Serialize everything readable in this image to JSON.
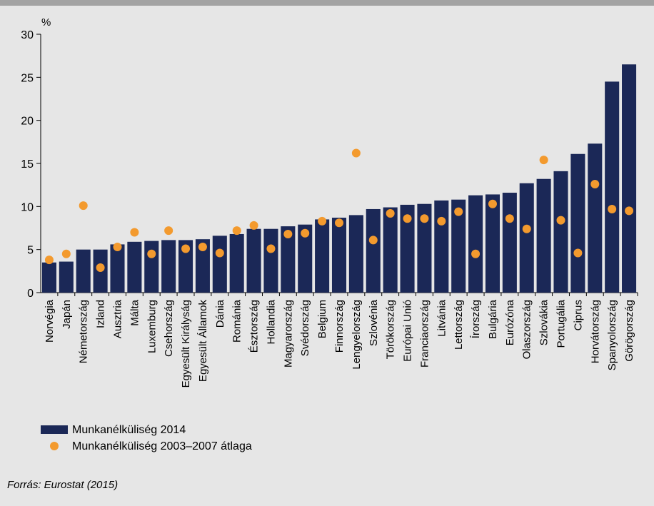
{
  "chart_data": {
    "type": "bar",
    "y_label": "%",
    "categories": [
      "Norvégia",
      "Japán",
      "Németország",
      "Izland",
      "Ausztria",
      "Málta",
      "Luxemburg",
      "Csehország",
      "Egyesült Királyság",
      "Egyesült Államok",
      "Dánia",
      "Románia",
      "Észtország",
      "Hollandia",
      "Magyarország",
      "Svédország",
      "Belgium",
      "Finnország",
      "Lengyelország",
      "Szlovénia",
      "Törökország",
      "Európai Unió",
      "Franciaország",
      "Litvánia",
      "Lettország",
      "Írország",
      "Bulgária",
      "Eurózóna",
      "Olaszország",
      "Szlovákia",
      "Portugália",
      "Ciprus",
      "Horvátország",
      "Spanyolország",
      "Görögország"
    ],
    "series": [
      {
        "name": "Munkanélküliség 2014",
        "type": "bar",
        "color": "#1b2857",
        "values": [
          3.5,
          3.6,
          5.0,
          5.0,
          5.6,
          5.9,
          6.0,
          6.1,
          6.1,
          6.2,
          6.6,
          6.8,
          7.4,
          7.4,
          7.7,
          7.9,
          8.5,
          8.7,
          9.0,
          9.7,
          9.9,
          10.2,
          10.3,
          10.7,
          10.8,
          11.3,
          11.4,
          11.6,
          12.7,
          13.2,
          14.1,
          16.1,
          17.3,
          24.5,
          26.5
        ]
      },
      {
        "name": "Munkanélküliség 2003–2007 átlaga",
        "type": "scatter",
        "color": "#f39a2e",
        "values": [
          3.8,
          4.5,
          10.1,
          2.9,
          5.3,
          7.0,
          4.5,
          7.2,
          5.1,
          5.3,
          4.6,
          7.2,
          7.8,
          5.1,
          6.8,
          6.9,
          8.3,
          8.1,
          16.2,
          6.1,
          9.2,
          8.6,
          8.6,
          8.3,
          9.4,
          4.5,
          10.3,
          8.6,
          7.4,
          15.4,
          8.4,
          4.6,
          12.6,
          9.7,
          9.5
        ]
      }
    ],
    "ylim": [
      0,
      30
    ],
    "yticks": [
      0,
      5,
      10,
      15,
      20,
      25,
      30
    ],
    "grid": false,
    "source": "Forrás: Eurostat (2015)"
  }
}
